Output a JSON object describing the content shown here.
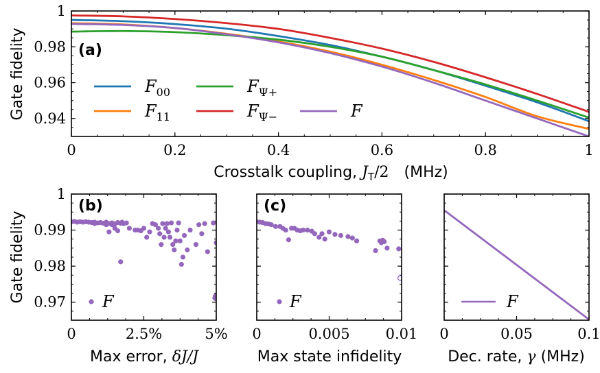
{
  "figure": {
    "colors": {
      "F00": "#1f77b4",
      "F11": "#ff7f0e",
      "FPsiPlus": "#2ca02c",
      "FPsiMinus": "#d62728",
      "F": "#9467bd"
    }
  },
  "chart_data": [
    {
      "panel": "(a)",
      "type": "line",
      "xlabel": "Crosstalk coupling, J_T/2   (MHz)",
      "xlabel_parts": {
        "pre": "Crosstalk coupling, ",
        "var": "J",
        "sub": "T",
        "post": "/2",
        "unit": "(MHz)"
      },
      "ylabel": "Gate fidelity",
      "xlim": [
        0,
        1
      ],
      "ylim": [
        0.93,
        1.0
      ],
      "xticks": [
        "0",
        "0.2",
        "0.4",
        "0.6",
        "0.8",
        "1"
      ],
      "xtick_values": [
        0,
        0.2,
        0.4,
        0.6,
        0.8,
        1
      ],
      "yticks": [
        "0.94",
        "0.96",
        "0.98",
        "1"
      ],
      "ytick_values": [
        0.94,
        0.96,
        0.98,
        1.0
      ],
      "x": [
        0,
        0.1,
        0.2,
        0.3,
        0.4,
        0.5,
        0.6,
        0.7,
        0.8,
        0.9,
        1.0
      ],
      "series": [
        {
          "name": "F_00",
          "label_main": "F",
          "label_sub": "00",
          "color_key": "F00",
          "values": [
            0.995,
            0.9943,
            0.9927,
            0.9901,
            0.986,
            0.981,
            0.9745,
            0.967,
            0.9583,
            0.949,
            0.9385
          ]
        },
        {
          "name": "F_11",
          "label_main": "F",
          "label_sub": "11",
          "color_key": "F11",
          "values": [
            0.9932,
            0.9925,
            0.9905,
            0.9873,
            0.983,
            0.9773,
            0.97,
            0.9615,
            0.952,
            0.9412,
            0.9342
          ]
        },
        {
          "name": "F_Ψ+",
          "label_main": "F",
          "label_sub": "Ψ+",
          "color_key": "FPsiPlus",
          "values": [
            0.9885,
            0.9888,
            0.9882,
            0.9865,
            0.984,
            0.98,
            0.9745,
            0.967,
            0.959,
            0.95,
            0.9405
          ]
        },
        {
          "name": "F_Ψ−",
          "label_main": "F",
          "label_sub": "Ψ−",
          "color_key": "FPsiMinus",
          "values": [
            0.9975,
            0.997,
            0.9955,
            0.9932,
            0.99,
            0.985,
            0.979,
            0.9716,
            0.963,
            0.9537,
            0.9437
          ]
        },
        {
          "name": "F",
          "label_main": "F",
          "label_sub": "",
          "color_key": "F",
          "values": [
            0.9928,
            0.9922,
            0.9905,
            0.987,
            0.9825,
            0.9765,
            0.969,
            0.96,
            0.95,
            0.94,
            0.93
          ]
        }
      ]
    },
    {
      "panel": "(b)",
      "type": "scatter",
      "xlabel": "Max error, δJ/J",
      "xlabel_parts": {
        "pre": "Max error, ",
        "var": "δJ/J"
      },
      "ylabel": "Gate fidelity",
      "xlim": [
        0,
        5
      ],
      "ylim": [
        0.965,
        1.0
      ],
      "xticks": [
        "0",
        "2.5%",
        "5%"
      ],
      "xtick_values": [
        0,
        2.5,
        5
      ],
      "yticks": [
        "0.97",
        "0.98",
        "0.99",
        "1"
      ],
      "ytick_values": [
        0.97,
        0.98,
        0.99,
        1.0
      ],
      "legend": "F",
      "points": [
        [
          0.0,
          0.9923
        ],
        [
          0.1,
          0.9924
        ],
        [
          0.2,
          0.9922
        ],
        [
          0.3,
          0.9923
        ],
        [
          0.4,
          0.9922
        ],
        [
          0.5,
          0.9923
        ],
        [
          0.6,
          0.9922
        ],
        [
          0.7,
          0.9921
        ],
        [
          0.8,
          0.9922
        ],
        [
          0.9,
          0.992
        ],
        [
          1.0,
          0.9921
        ],
        [
          1.1,
          0.9919
        ],
        [
          1.2,
          0.9922
        ],
        [
          1.3,
          0.9918
        ],
        [
          1.4,
          0.992
        ],
        [
          1.5,
          0.9917
        ],
        [
          1.6,
          0.9921
        ],
        [
          1.7,
          0.9919
        ],
        [
          1.75,
          0.9922
        ],
        [
          1.8,
          0.9918
        ],
        [
          0.8,
          0.9918
        ],
        [
          1.2,
          0.9915
        ],
        [
          1.4,
          0.9915
        ],
        [
          1.5,
          0.9905
        ],
        [
          1.6,
          0.9898
        ],
        [
          1.3,
          0.9895
        ],
        [
          1.7,
          0.9812
        ],
        [
          1.9,
          0.992
        ],
        [
          2.0,
          0.9905
        ],
        [
          2.2,
          0.99
        ],
        [
          2.3,
          0.99
        ],
        [
          2.4,
          0.9898
        ],
        [
          2.5,
          0.9905
        ],
        [
          2.6,
          0.988
        ],
        [
          2.7,
          0.9895
        ],
        [
          2.8,
          0.9918
        ],
        [
          2.9,
          0.9915
        ],
        [
          3.0,
          0.9905
        ],
        [
          3.05,
          0.989
        ],
        [
          3.1,
          0.986
        ],
        [
          3.15,
          0.9918
        ],
        [
          3.2,
          0.988
        ],
        [
          3.25,
          0.9905
        ],
        [
          3.3,
          0.9918
        ],
        [
          3.35,
          0.9895
        ],
        [
          3.4,
          0.988
        ],
        [
          3.45,
          0.992
        ],
        [
          3.5,
          0.986
        ],
        [
          3.55,
          0.9845
        ],
        [
          3.6,
          0.987
        ],
        [
          3.65,
          0.99
        ],
        [
          3.7,
          0.992
        ],
        [
          3.75,
          0.987
        ],
        [
          3.8,
          0.9805
        ],
        [
          3.85,
          0.9825
        ],
        [
          3.9,
          0.9885
        ],
        [
          4.0,
          0.9845
        ],
        [
          4.1,
          0.99
        ],
        [
          4.3,
          0.986
        ],
        [
          4.4,
          0.9915
        ],
        [
          4.5,
          0.989
        ],
        [
          4.6,
          0.9918
        ],
        [
          4.7,
          0.984
        ],
        [
          4.9,
          0.992
        ],
        [
          4.95,
          0.9712
        ],
        [
          4.97,
          0.9717
        ],
        [
          5.0,
          0.9865
        ],
        [
          4.98,
          0.971
        ]
      ]
    },
    {
      "panel": "(c)",
      "type": "scatter",
      "xlabel": "Max state infidelity",
      "ylabel": "",
      "xlim": [
        0,
        0.01
      ],
      "ylim": [
        0.965,
        1.0
      ],
      "xticks": [
        "0",
        "0.005",
        "0.01"
      ],
      "xtick_values": [
        0,
        0.005,
        0.01
      ],
      "yticks": [],
      "ytick_values": [
        0.97,
        0.98,
        0.99,
        1.0
      ],
      "legend": "F",
      "points": [
        [
          0.0,
          0.9923
        ],
        [
          0.0002,
          0.9922
        ],
        [
          0.0004,
          0.9921
        ],
        [
          0.0006,
          0.9918
        ],
        [
          0.0008,
          0.9917
        ],
        [
          0.001,
          0.9915
        ],
        [
          0.0013,
          0.991
        ],
        [
          0.0016,
          0.991
        ],
        [
          0.0018,
          0.9905
        ],
        [
          0.002,
          0.99
        ],
        [
          0.0022,
          0.9873
        ],
        [
          0.0024,
          0.9905
        ],
        [
          0.0026,
          0.9905
        ],
        [
          0.0028,
          0.99
        ],
        [
          0.003,
          0.9898
        ],
        [
          0.0032,
          0.99
        ],
        [
          0.0035,
          0.99
        ],
        [
          0.0038,
          0.9897
        ],
        [
          0.004,
          0.989
        ],
        [
          0.0043,
          0.988
        ],
        [
          0.0045,
          0.989
        ],
        [
          0.0047,
          0.9875
        ],
        [
          0.005,
          0.9895
        ],
        [
          0.0054,
          0.9888
        ],
        [
          0.0058,
          0.9885
        ],
        [
          0.0063,
          0.9882
        ],
        [
          0.0066,
          0.9878
        ],
        [
          0.0069,
          0.987
        ],
        [
          0.0082,
          0.9843
        ],
        [
          0.0085,
          0.987
        ],
        [
          0.0086,
          0.9865
        ],
        [
          0.0087,
          0.9872
        ],
        [
          0.0088,
          0.9868
        ],
        [
          0.009,
          0.985
        ],
        [
          0.0098,
          0.9848
        ]
      ],
      "open_points": [
        [
          0.0099,
          0.9767
        ]
      ]
    },
    {
      "panel": "",
      "type": "line",
      "xlabel": "Dec. rate, γ (MHz)",
      "xlabel_parts": {
        "pre": "Dec. rate, ",
        "var": "γ",
        "unit": " (MHz)"
      },
      "ylabel": "",
      "xlim": [
        0,
        0.1
      ],
      "ylim": [
        0.965,
        1.0
      ],
      "xticks": [
        "0",
        "0.05",
        "0.1"
      ],
      "xtick_values": [
        0,
        0.05,
        0.1
      ],
      "yticks": [],
      "ytick_values": [
        0.97,
        0.98,
        0.99,
        1.0
      ],
      "legend": "F",
      "x": [
        0,
        0.1
      ],
      "values": [
        0.9955,
        0.9652
      ]
    }
  ]
}
